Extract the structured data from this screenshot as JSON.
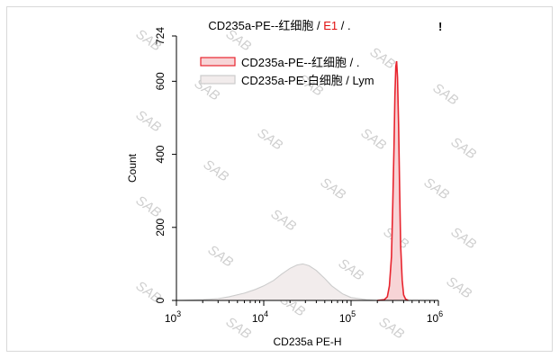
{
  "chart_data": {
    "type": "line",
    "title_parts": [
      {
        "text": "CD235a-PE--红细胞 / ",
        "color": "#000000"
      },
      {
        "text": "E1",
        "color": "#e01010"
      },
      {
        "text": " / .",
        "color": "#000000"
      }
    ],
    "corner_mark": "!",
    "xlabel": "CD235a PE-H",
    "ylabel": "Count",
    "x_scale": "log",
    "xlim": [
      1000,
      1000000
    ],
    "ylim": [
      0,
      724
    ],
    "x_ticks": [
      {
        "base": "10",
        "exp": "3",
        "value": 1000
      },
      {
        "base": "10",
        "exp": "4",
        "value": 10000
      },
      {
        "base": "10",
        "exp": "5",
        "value": 100000
      },
      {
        "base": "10",
        "exp": "6",
        "value": 1000000
      }
    ],
    "y_ticks": [
      {
        "label": "0",
        "value": 0
      },
      {
        "label": "200",
        "value": 200
      },
      {
        "label": "400",
        "value": 400
      },
      {
        "label": "600",
        "value": 600
      },
      {
        "label": "724",
        "value": 724
      }
    ],
    "legend": {
      "position": "top-left"
    },
    "watermark": "SAB",
    "series": [
      {
        "name": "CD235a-PE--红细胞 / .",
        "stroke": "#e8242e",
        "fill": "#f7d4d6",
        "x": [
          200000,
          240000,
          260000,
          275000,
          290000,
          300000,
          310000,
          318000,
          325000,
          332000,
          340000,
          350000,
          360000,
          370000,
          385000,
          400000,
          420000,
          450000
        ],
        "y": [
          0,
          2,
          10,
          40,
          120,
          260,
          420,
          560,
          640,
          655,
          610,
          480,
          300,
          150,
          55,
          15,
          4,
          0
        ]
      },
      {
        "name": "CD235a-PE-白细胞 / Lym",
        "stroke": "#cccccc",
        "fill": "#f2ecec",
        "x": [
          1000,
          2000,
          3000,
          4000,
          6000,
          8000,
          10000,
          13000,
          16000,
          20000,
          24000,
          28000,
          33000,
          40000,
          50000,
          60000,
          80000,
          100000,
          150000,
          200000
        ],
        "y": [
          0,
          2,
          5,
          10,
          20,
          30,
          40,
          55,
          72,
          88,
          97,
          100,
          95,
          82,
          60,
          40,
          18,
          8,
          2,
          0
        ]
      }
    ]
  }
}
